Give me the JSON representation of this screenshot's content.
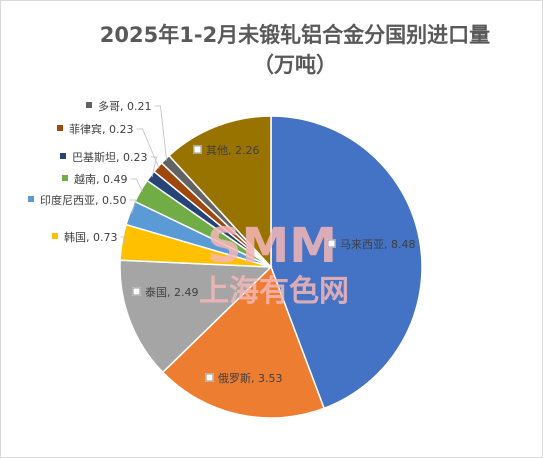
{
  "chart_data": {
    "type": "pie",
    "title_line1": "2025年1-2月未锻轧铝合金分国别进口量",
    "title_line2": "（万吨）",
    "slices": [
      {
        "label": "马来西亚",
        "value": 8.48,
        "value_text": "8.48",
        "color": "#4472c4"
      },
      {
        "label": "俄罗斯",
        "value": 3.53,
        "value_text": "3.53",
        "color": "#ed7d31"
      },
      {
        "label": "泰国",
        "value": 2.49,
        "value_text": "2.49",
        "color": "#a5a5a5"
      },
      {
        "label": "韩国",
        "value": 0.73,
        "value_text": "0.73",
        "color": "#ffc000"
      },
      {
        "label": "印度尼西亚",
        "value": 0.5,
        "value_text": "0.50",
        "color": "#5b9bd5"
      },
      {
        "label": "越南",
        "value": 0.49,
        "value_text": "0.49",
        "color": "#70ad47"
      },
      {
        "label": "巴基斯坦",
        "value": 0.23,
        "value_text": "0.23",
        "color": "#264478"
      },
      {
        "label": "菲律宾",
        "value": 0.23,
        "value_text": "0.23",
        "color": "#9e480e"
      },
      {
        "label": "多哥",
        "value": 0.21,
        "value_text": "0.21",
        "color": "#636363"
      },
      {
        "label": "其他",
        "value": 2.26,
        "value_text": "2.26",
        "color": "#997300"
      }
    ]
  },
  "watermark": {
    "text_en": "SMM",
    "text_cn": "上海有色网",
    "color": "#f4b6b6"
  }
}
